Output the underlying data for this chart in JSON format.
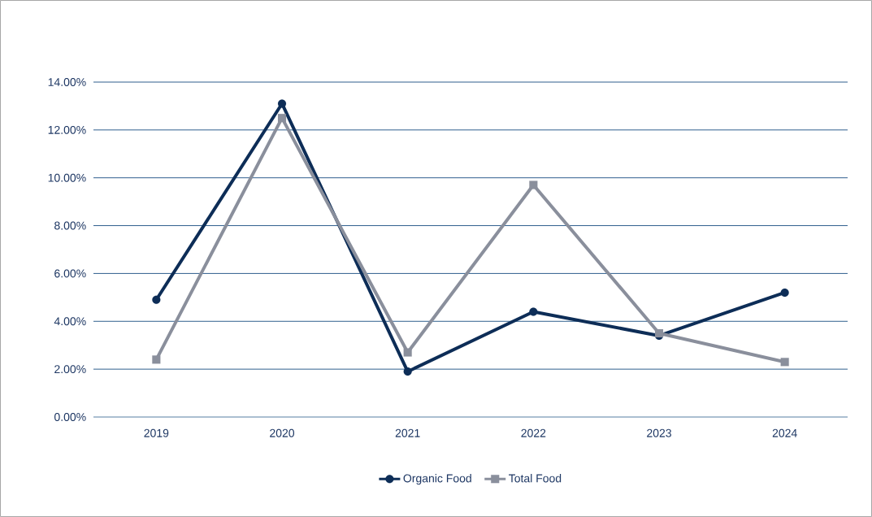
{
  "chart_data": {
    "type": "line",
    "categories": [
      "2019",
      "2020",
      "2021",
      "2022",
      "2023",
      "2024"
    ],
    "series": [
      {
        "name": "Organic Food",
        "color": "#0d2d57",
        "marker": "circle",
        "values": [
          4.9,
          13.1,
          1.9,
          4.4,
          3.4,
          5.2
        ]
      },
      {
        "name": "Total Food",
        "color": "#8a8f9c",
        "marker": "square",
        "values": [
          2.4,
          12.5,
          2.7,
          9.7,
          3.5,
          2.3
        ]
      }
    ],
    "ylim": [
      0,
      14
    ],
    "yticks": [
      {
        "value": 0,
        "label": "0.00%"
      },
      {
        "value": 2,
        "label": "2.00%"
      },
      {
        "value": 4,
        "label": "4.00%"
      },
      {
        "value": 6,
        "label": "6.00%"
      },
      {
        "value": 8,
        "label": "8.00%"
      },
      {
        "value": 10,
        "label": "10.00%"
      },
      {
        "value": 12,
        "label": "12.00%"
      },
      {
        "value": 14,
        "label": "14.00%"
      }
    ],
    "grid": "y",
    "legend": "bottom",
    "line_style": "solid"
  }
}
